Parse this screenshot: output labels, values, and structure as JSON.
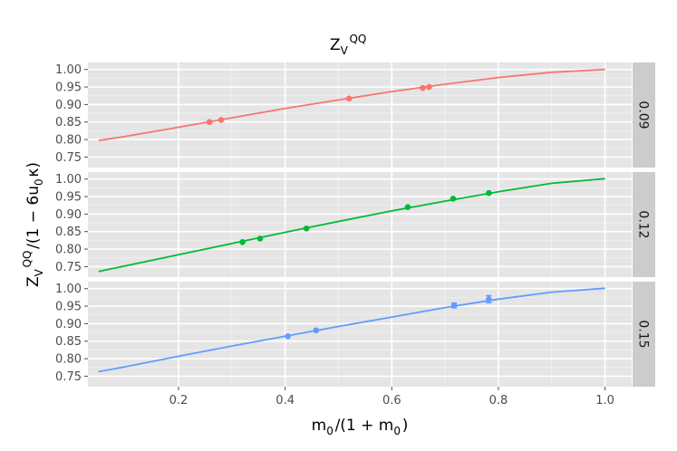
{
  "chart_data": {
    "type": "line",
    "title": "Z_V^QQ",
    "xlabel": "m_0/(1 + m_0)",
    "ylabel": "Z_V^QQ/(1 − 6u_0κ)",
    "xlim": [
      0.03,
      1.05
    ],
    "ylim": [
      0.72,
      1.02
    ],
    "x_ticks": [
      0.2,
      0.4,
      0.6,
      0.8,
      1.0
    ],
    "x_tick_labels": [
      "0.2",
      "0.4",
      "0.6",
      "0.8",
      "1.0"
    ],
    "y_ticks": [
      0.75,
      0.8,
      0.85,
      0.9,
      0.95,
      1.0
    ],
    "y_tick_labels": [
      "0.75",
      "0.80",
      "0.85",
      "0.90",
      "0.95",
      "1.00"
    ],
    "grid": true,
    "facets": [
      {
        "label": "0.09",
        "color": "#F8766D",
        "curve": {
          "x": [
            0.05,
            0.1,
            0.2,
            0.3,
            0.4,
            0.5,
            0.6,
            0.7,
            0.8,
            0.9,
            1.0
          ],
          "y": [
            0.797,
            0.809,
            0.835,
            0.862,
            0.889,
            0.913,
            0.937,
            0.958,
            0.977,
            0.992,
            1.0
          ]
        },
        "points": {
          "x": [
            0.258,
            0.28,
            0.52,
            0.658,
            0.67
          ],
          "y": [
            0.85,
            0.856,
            0.917,
            0.947,
            0.95
          ],
          "err": [
            0,
            0,
            0,
            0,
            0
          ]
        }
      },
      {
        "label": "0.12",
        "color": "#00BA38",
        "curve": {
          "x": [
            0.05,
            0.1,
            0.2,
            0.3,
            0.4,
            0.5,
            0.6,
            0.7,
            0.8,
            0.9,
            1.0
          ],
          "y": [
            0.736,
            0.752,
            0.784,
            0.816,
            0.848,
            0.879,
            0.909,
            0.937,
            0.964,
            0.988,
            1.001
          ]
        },
        "points": {
          "x": [
            0.32,
            0.353,
            0.44,
            0.63,
            0.715,
            0.782
          ],
          "y": [
            0.82,
            0.83,
            0.859,
            0.92,
            0.944,
            0.96
          ],
          "err": [
            0,
            0,
            0,
            0,
            0,
            0
          ]
        }
      },
      {
        "label": "0.15",
        "color": "#619CFF",
        "curve": {
          "x": [
            0.05,
            0.1,
            0.2,
            0.3,
            0.4,
            0.5,
            0.6,
            0.7,
            0.8,
            0.9,
            1.0
          ],
          "y": [
            0.763,
            0.777,
            0.807,
            0.836,
            0.864,
            0.892,
            0.919,
            0.946,
            0.97,
            0.99,
            1.001
          ]
        },
        "points": {
          "x": [
            0.405,
            0.458,
            0.717,
            0.782
          ],
          "y": [
            0.864,
            0.881,
            0.952,
            0.97
          ],
          "err": [
            0,
            0,
            0.007,
            0.01
          ]
        }
      }
    ]
  }
}
